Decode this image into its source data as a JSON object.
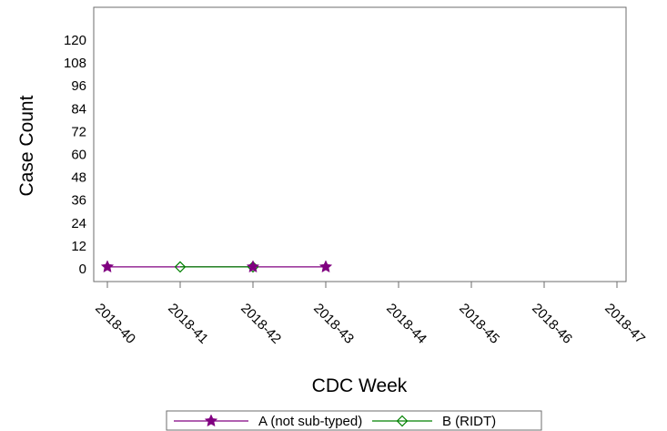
{
  "chart_data": {
    "type": "line",
    "xlabel": "CDC Week",
    "ylabel": "Case Count",
    "categories": [
      "2018-40",
      "2018-41",
      "2018-42",
      "2018-43",
      "2018-44",
      "2018-45",
      "2018-46",
      "2018-47"
    ],
    "ylim": [
      -6,
      132
    ],
    "yticks": [
      0,
      12,
      24,
      36,
      48,
      60,
      72,
      84,
      96,
      108,
      120
    ],
    "legend_position": "bottom",
    "grid": false,
    "series": [
      {
        "name": "A (not sub-typed)",
        "color": "#800080",
        "marker": "star",
        "points": [
          {
            "x": "2018-40",
            "y": 1
          },
          {
            "x": "2018-42",
            "y": 1
          },
          {
            "x": "2018-43",
            "y": 1
          }
        ]
      },
      {
        "name": "B (RIDT)",
        "color": "#008000",
        "marker": "diamond-open",
        "points": [
          {
            "x": "2018-41",
            "y": 1
          },
          {
            "x": "2018-42",
            "y": 1
          }
        ]
      }
    ]
  }
}
